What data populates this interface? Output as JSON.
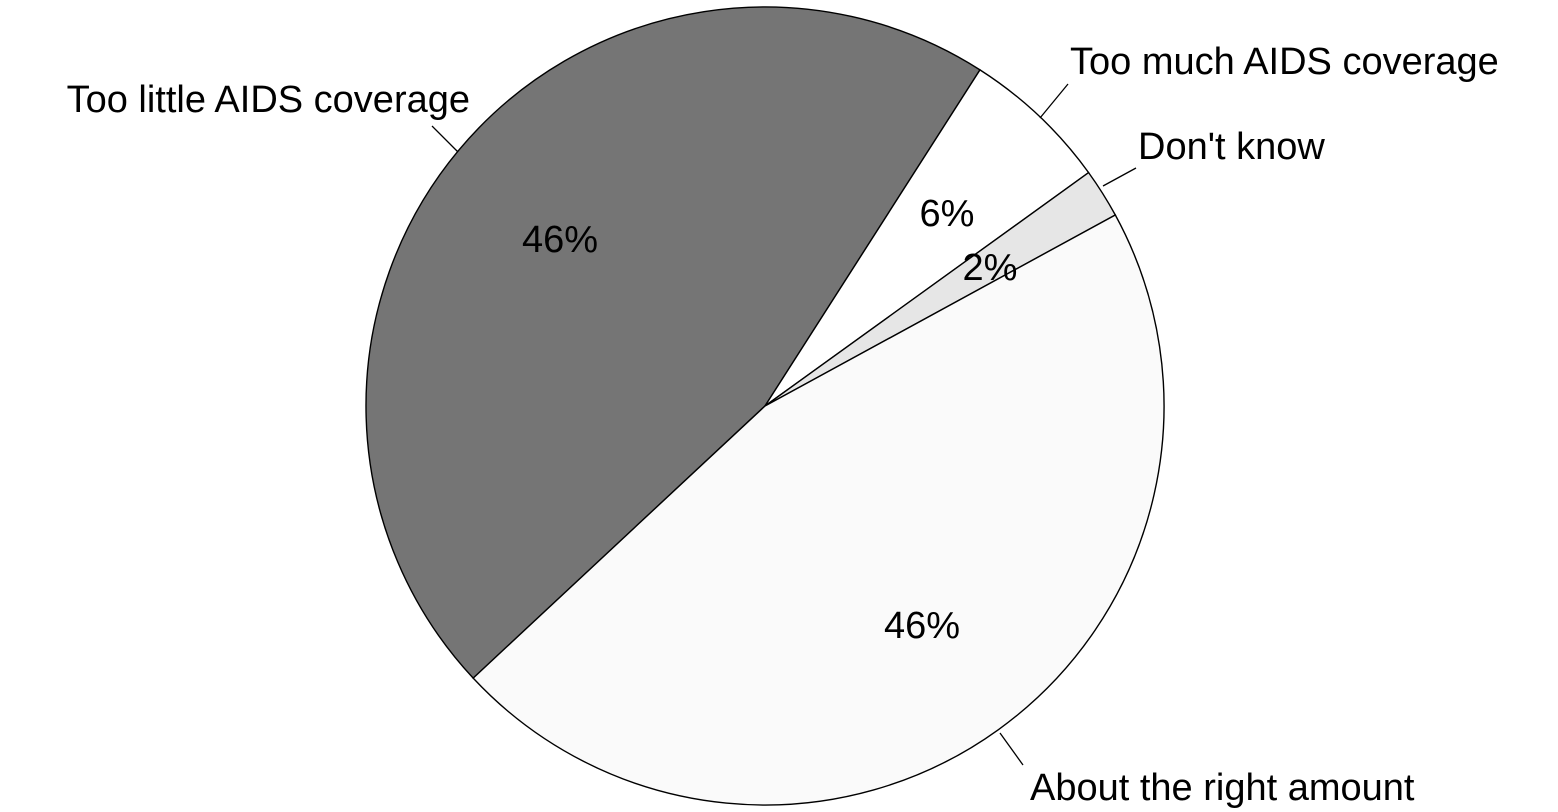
{
  "chart_data": {
    "type": "pie",
    "slices": [
      {
        "label": "Too little AIDS coverage",
        "value": 46,
        "value_label": "46%",
        "color": "#757575"
      },
      {
        "label": "Too much AIDS coverage",
        "value": 6,
        "value_label": "6%",
        "color": "#ffffff"
      },
      {
        "label": "Don't know",
        "value": 2,
        "value_label": "2%",
        "color": "#e6e6e6"
      },
      {
        "label": "About the right amount",
        "value": 46,
        "value_label": "46%",
        "color": "#fafafa"
      }
    ]
  }
}
